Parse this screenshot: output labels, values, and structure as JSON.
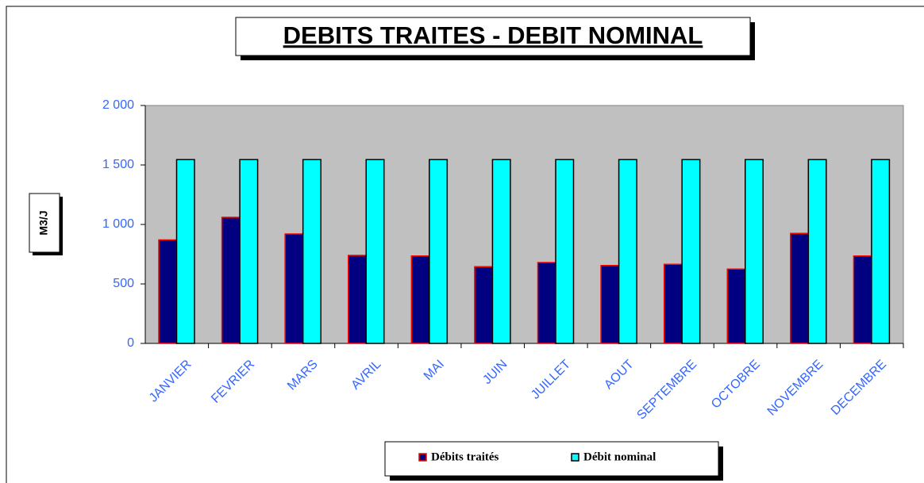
{
  "chart_data": {
    "type": "bar",
    "title": "DEBITS TRAITES - DEBIT NOMINAL",
    "y_label": "M3/J",
    "categories": [
      "JANVIER",
      "FEVRIER",
      "MARS",
      "AVRIL",
      "MAI",
      "JUIN",
      "JUILLET",
      "AOUT",
      "SEPTEMBRE",
      "OCTOBRE",
      "NOVEMBRE",
      "DECEMBRE"
    ],
    "series": [
      {
        "name": "Débits traités",
        "color": "#000080",
        "values": [
          870,
          1060,
          920,
          740,
          735,
          645,
          680,
          655,
          665,
          625,
          925,
          735
        ]
      },
      {
        "name": "Débit nominal",
        "color": "#00ffff",
        "values": [
          1545,
          1545,
          1545,
          1545,
          1545,
          1545,
          1545,
          1545,
          1545,
          1545,
          1545,
          1545
        ]
      }
    ],
    "ylim": [
      0,
      2000
    ],
    "yticks": [
      0,
      500,
      {
        "value": 1000,
        "label": "1 000"
      },
      {
        "value": 1500,
        "label": "1 500"
      },
      {
        "value": 2000,
        "label": "2 000"
      }
    ],
    "legend": "bottom"
  }
}
